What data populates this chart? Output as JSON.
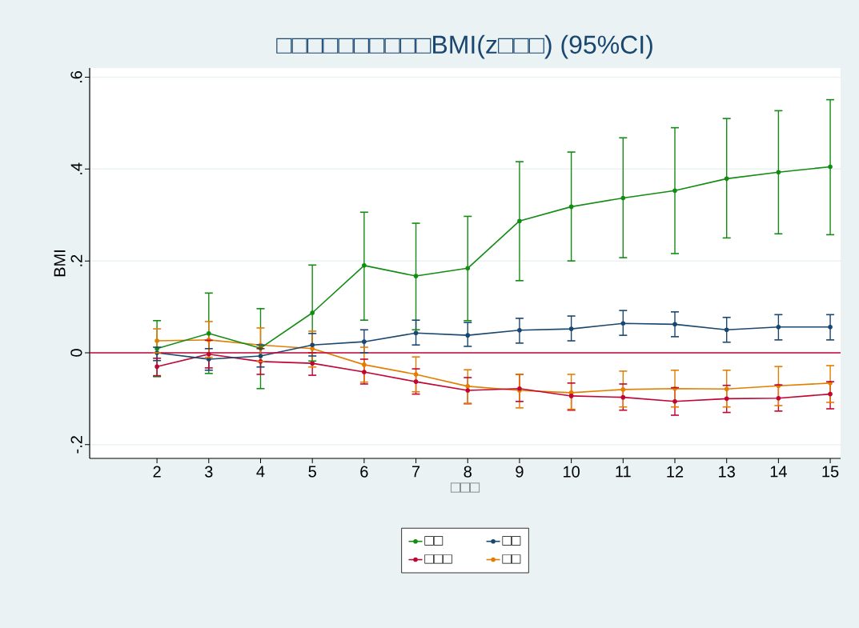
{
  "chart_data": {
    "type": "line",
    "title": "□□□□□□□□□□BMI(z□□□) (95%CI)",
    "xlabel": "□□□",
    "ylabel": "BMI",
    "x": [
      2,
      3,
      4,
      5,
      6,
      7,
      8,
      9,
      10,
      11,
      12,
      13,
      14,
      15
    ],
    "xlim": [
      0.7,
      15.2
    ],
    "xticks": [
      2,
      3,
      4,
      5,
      6,
      7,
      8,
      9,
      10,
      11,
      12,
      13,
      14,
      15
    ],
    "ylim": [
      -0.23,
      0.62
    ],
    "yticks": [
      {
        "value": -0.2,
        "label": "-.2"
      },
      0,
      {
        "value": 0.2,
        "label": ".2"
      },
      {
        "value": 0.4,
        "label": ".4"
      },
      {
        "value": 0.6,
        "label": ".6"
      }
    ],
    "grid": "y",
    "legend": "bottom",
    "marker": "circle",
    "ref_lines": [
      {
        "axis": "y",
        "value": 0,
        "color": "#c10534"
      }
    ],
    "series": [
      {
        "name": "□□",
        "color": "#138c13",
        "values": [
          0.009,
          0.042,
          0.01,
          0.087,
          0.19,
          0.167,
          0.184,
          0.287,
          0.318,
          0.337,
          0.353,
          0.379,
          0.393,
          0.405
        ],
        "errors": [
          [
            -0.052,
            0.07
          ],
          [
            -0.045,
            0.13
          ],
          [
            -0.078,
            0.096
          ],
          [
            -0.018,
            0.191
          ],
          [
            0.071,
            0.306
          ],
          [
            0.05,
            0.282
          ],
          [
            0.07,
            0.297
          ],
          [
            0.157,
            0.416
          ],
          [
            0.2,
            0.437
          ],
          [
            0.207,
            0.468
          ],
          [
            0.216,
            0.49
          ],
          [
            0.25,
            0.51
          ],
          [
            0.259,
            0.527
          ],
          [
            0.257,
            0.551
          ]
        ]
      },
      {
        "name": "□□",
        "color": "#1a476f",
        "values": [
          0.0,
          -0.014,
          -0.007,
          0.017,
          0.024,
          0.043,
          0.038,
          0.049,
          0.052,
          0.064,
          0.062,
          0.05,
          0.056,
          0.056
        ],
        "errors": [
          [
            -0.017,
            0.012
          ],
          [
            -0.038,
            0.009
          ],
          [
            -0.031,
            0.017
          ],
          [
            -0.007,
            0.042
          ],
          [
            0.0,
            0.05
          ],
          [
            0.017,
            0.071
          ],
          [
            0.014,
            0.066
          ],
          [
            0.021,
            0.075
          ],
          [
            0.026,
            0.08
          ],
          [
            0.038,
            0.092
          ],
          [
            0.035,
            0.089
          ],
          [
            0.023,
            0.077
          ],
          [
            0.028,
            0.083
          ],
          [
            0.028,
            0.083
          ]
        ]
      },
      {
        "name": "□□□",
        "color": "#c10534",
        "values": [
          -0.03,
          -0.003,
          -0.019,
          -0.023,
          -0.042,
          -0.063,
          -0.082,
          -0.078,
          -0.094,
          -0.097,
          -0.106,
          -0.1,
          -0.099,
          -0.09
        ],
        "errors": [
          [
            -0.05,
            -0.012
          ],
          [
            -0.033,
            0.027
          ],
          [
            -0.047,
            0.009
          ],
          [
            -0.049,
            0.0
          ],
          [
            -0.068,
            -0.014
          ],
          [
            -0.09,
            -0.035
          ],
          [
            -0.111,
            -0.054
          ],
          [
            -0.106,
            -0.047
          ],
          [
            -0.125,
            -0.066
          ],
          [
            -0.125,
            -0.068
          ],
          [
            -0.136,
            -0.076
          ],
          [
            -0.13,
            -0.071
          ],
          [
            -0.127,
            -0.07
          ],
          [
            -0.122,
            -0.063
          ]
        ]
      },
      {
        "name": "□□",
        "color": "#e37e00",
        "values": [
          0.026,
          0.028,
          0.017,
          0.009,
          -0.026,
          -0.047,
          -0.073,
          -0.082,
          -0.087,
          -0.08,
          -0.078,
          -0.079,
          -0.072,
          -0.066
        ],
        "errors": [
          [
            0.0,
            0.052
          ],
          [
            -0.01,
            0.068
          ],
          [
            -0.019,
            0.054
          ],
          [
            -0.031,
            0.047
          ],
          [
            -0.064,
            0.012
          ],
          [
            -0.085,
            -0.009
          ],
          [
            -0.11,
            -0.037
          ],
          [
            -0.12,
            -0.047
          ],
          [
            -0.123,
            -0.047
          ],
          [
            -0.118,
            -0.04
          ],
          [
            -0.118,
            -0.038
          ],
          [
            -0.118,
            -0.038
          ],
          [
            -0.115,
            -0.03
          ],
          [
            -0.108,
            -0.028
          ]
        ]
      }
    ]
  }
}
